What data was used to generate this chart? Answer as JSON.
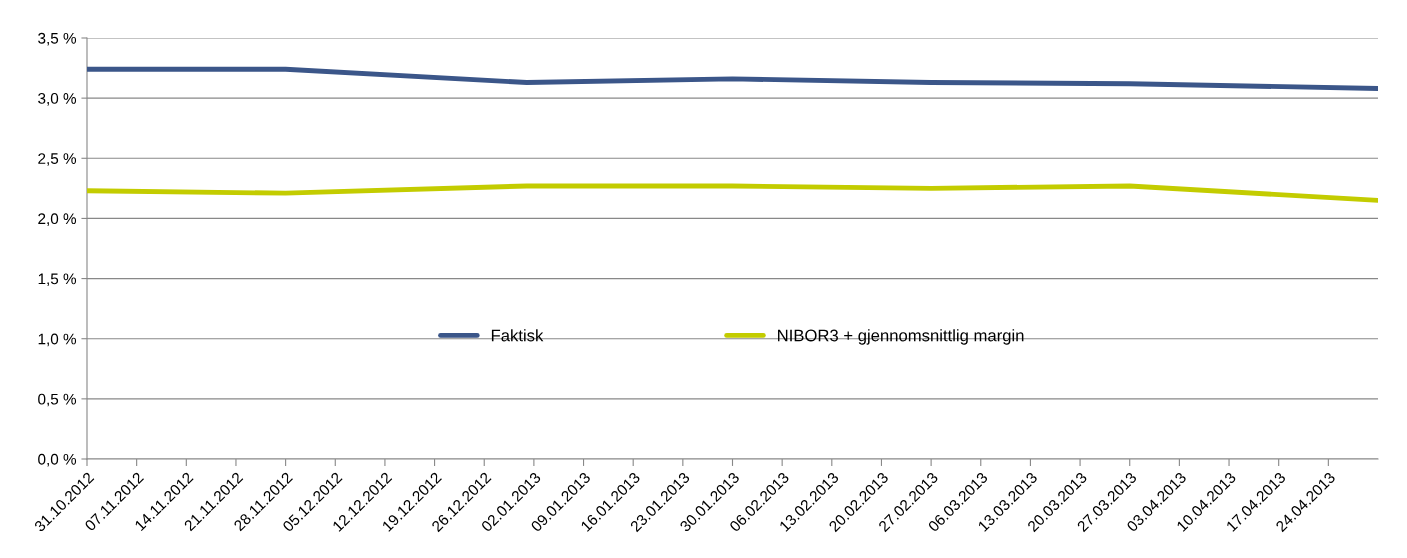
{
  "chart_data": {
    "type": "line",
    "series": [
      {
        "name": "Faktisk",
        "color": "#3b5689",
        "x": [
          "2012-10-31",
          "2012-11-28",
          "2013-01-01",
          "2013-01-30",
          "2013-02-27",
          "2013-03-27",
          "2013-05-01"
        ],
        "values": [
          3.24,
          3.24,
          3.13,
          3.16,
          3.13,
          3.12,
          3.08
        ]
      },
      {
        "name": "NIBOR3 + gjennomsnittlig margin",
        "color": "#c3cc00",
        "x": [
          "2012-10-31",
          "2012-11-28",
          "2013-01-01",
          "2013-01-30",
          "2013-02-27",
          "2013-03-27",
          "2013-05-01"
        ],
        "values": [
          2.23,
          2.21,
          2.27,
          2.27,
          2.25,
          2.27,
          2.15
        ]
      }
    ],
    "xlim": [
      "2012-10-31",
      "2013-05-01"
    ],
    "xticks": [
      {
        "value": "2012-10-31",
        "label": "31.10.2012"
      },
      {
        "value": "2012-11-07",
        "label": "07.11.2012"
      },
      {
        "value": "2012-11-14",
        "label": "14.11.2012"
      },
      {
        "value": "2012-11-21",
        "label": "21.11.2012"
      },
      {
        "value": "2012-11-28",
        "label": "28.11.2012"
      },
      {
        "value": "2012-12-05",
        "label": "05.12.2012"
      },
      {
        "value": "2012-12-12",
        "label": "12.12.2012"
      },
      {
        "value": "2012-12-19",
        "label": "19.12.2012"
      },
      {
        "value": "2012-12-26",
        "label": "26.12.2012"
      },
      {
        "value": "2013-01-02",
        "label": "02.01.2013"
      },
      {
        "value": "2013-01-09",
        "label": "09.01.2013"
      },
      {
        "value": "2013-01-16",
        "label": "16.01.2013"
      },
      {
        "value": "2013-01-23",
        "label": "23.01.2013"
      },
      {
        "value": "2013-01-30",
        "label": "30.01.2013"
      },
      {
        "value": "2013-02-06",
        "label": "06.02.2013"
      },
      {
        "value": "2013-02-13",
        "label": "13.02.2013"
      },
      {
        "value": "2013-02-20",
        "label": "20.02.2013"
      },
      {
        "value": "2013-02-27",
        "label": "27.02.2013"
      },
      {
        "value": "2013-03-06",
        "label": "06.03.2013"
      },
      {
        "value": "2013-03-13",
        "label": "13.03.2013"
      },
      {
        "value": "2013-03-20",
        "label": "20.03.2013"
      },
      {
        "value": "2013-03-27",
        "label": "27.03.2013"
      },
      {
        "value": "2013-04-03",
        "label": "03.04.2013"
      },
      {
        "value": "2013-04-10",
        "label": "10.04.2013"
      },
      {
        "value": "2013-04-17",
        "label": "17.04.2013"
      },
      {
        "value": "2013-04-24",
        "label": "24.04.2013"
      }
    ],
    "ylim": [
      0,
      3.5
    ],
    "yticks": [
      {
        "value": 0,
        "label": "0,0 %"
      },
      {
        "value": 0.5,
        "label": "0,5 %"
      },
      {
        "value": 1.0,
        "label": "1,0 %"
      },
      {
        "value": 1.5,
        "label": "1,5 %"
      },
      {
        "value": 2.0,
        "label": "2,0 %"
      },
      {
        "value": 2.5,
        "label": "2,5 %"
      },
      {
        "value": 3.0,
        "label": "3,0 %"
      },
      {
        "value": 3.5,
        "label": "3,5 %"
      }
    ],
    "grid": "y",
    "legend": "center",
    "marker": "none",
    "line_style": "solid"
  }
}
